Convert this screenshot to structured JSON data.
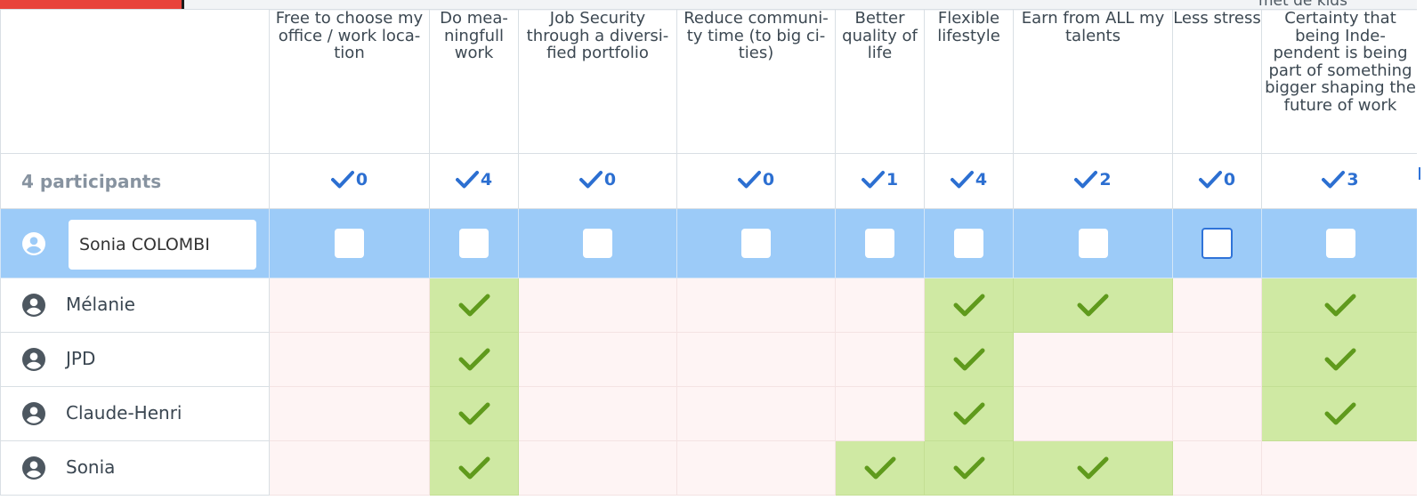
{
  "background": {
    "top_right_text": "met de kids"
  },
  "options": [
    {
      "label": "Free to choose my office / work loca-tion",
      "count": "0"
    },
    {
      "label": "Do mea-ningfull work",
      "count": "4"
    },
    {
      "label": "Job Security through a diversi-fied portfolio",
      "count": "0"
    },
    {
      "label": "Reduce communi-ty time (to big ci-ties)",
      "count": "0"
    },
    {
      "label": "Better quality of life",
      "count": "1"
    },
    {
      "label": "Flexible lifestyle",
      "count": "4"
    },
    {
      "label": "Earn from ALL my talents",
      "count": "2"
    },
    {
      "label": "Less stress",
      "count": "0"
    },
    {
      "label": "Certainty that being Inde-pendent is being part of something bigger shaping the future of work",
      "count": "3"
    }
  ],
  "participants_label": "4 participants",
  "edit_row": {
    "name_value": "Sonia COLOMBI",
    "focused_checkbox": 7
  },
  "participants": [
    {
      "name": "Mélanie",
      "votes": [
        false,
        true,
        false,
        false,
        false,
        true,
        true,
        false,
        true
      ]
    },
    {
      "name": "JPD",
      "votes": [
        false,
        true,
        false,
        false,
        false,
        true,
        false,
        false,
        true
      ]
    },
    {
      "name": "Claude-Henri",
      "votes": [
        false,
        true,
        false,
        false,
        false,
        true,
        false,
        false,
        true
      ]
    },
    {
      "name": "Sonia",
      "votes": [
        false,
        true,
        false,
        false,
        true,
        true,
        true,
        false,
        false
      ]
    }
  ],
  "colors": {
    "accent_blue": "#2c6fd1",
    "edit_row_bg": "#9ccbf8",
    "yes_cell_bg": "#cfe9a3",
    "no_cell_bg": "#fef4f4",
    "yes_tick": "#5f9a1c"
  }
}
